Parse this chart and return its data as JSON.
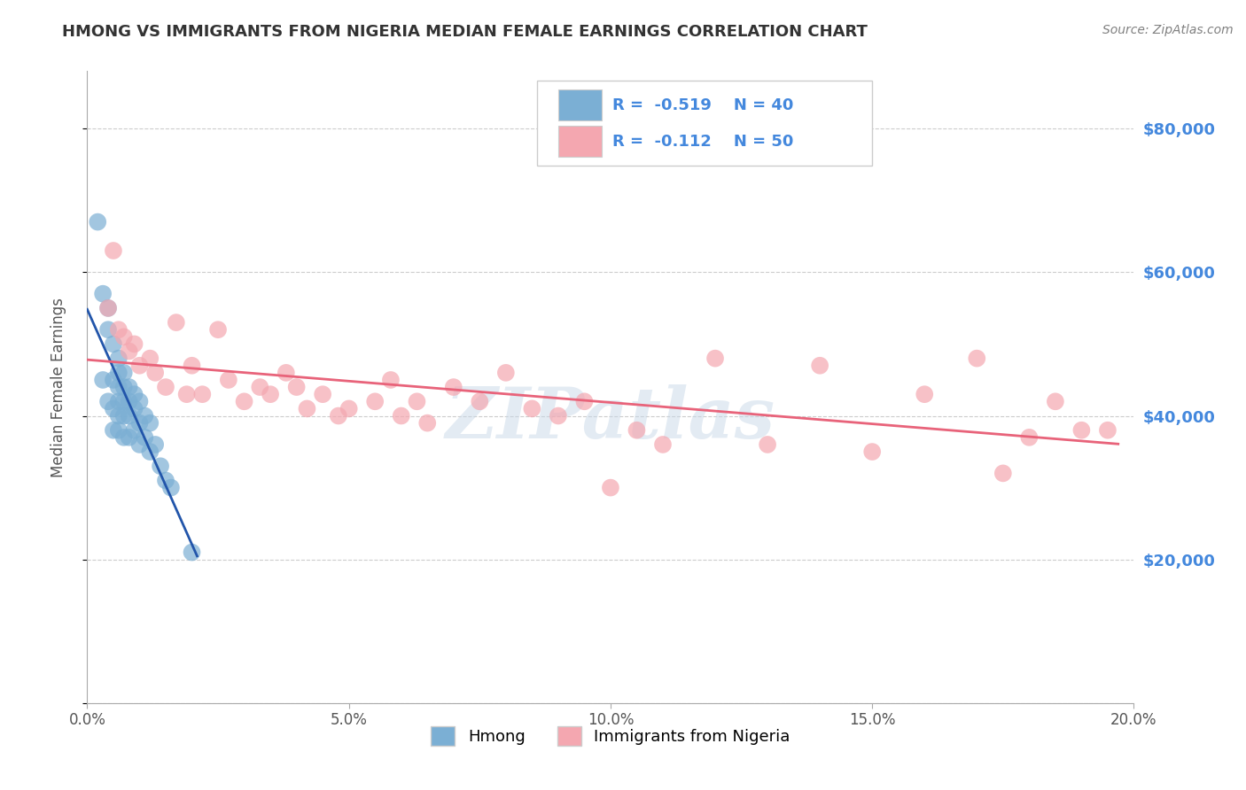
{
  "title": "HMONG VS IMMIGRANTS FROM NIGERIA MEDIAN FEMALE EARNINGS CORRELATION CHART",
  "source": "Source: ZipAtlas.com",
  "ylabel": "Median Female Earnings",
  "watermark": "ZIPatlas",
  "legend_labels": [
    "Hmong",
    "Immigrants from Nigeria"
  ],
  "r_values": [
    -0.519,
    -0.112
  ],
  "n_values": [
    40,
    50
  ],
  "xmin": 0.0,
  "xmax": 0.2,
  "ymin": 0,
  "ymax": 88000,
  "yticks": [
    0,
    20000,
    40000,
    60000,
    80000
  ],
  "ytick_labels": [
    "",
    "$20,000",
    "$40,000",
    "$60,000",
    "$80,000"
  ],
  "xticks": [
    0.0,
    0.05,
    0.1,
    0.15,
    0.2
  ],
  "xtick_labels": [
    "0.0%",
    "5.0%",
    "10.0%",
    "15.0%",
    "20.0%"
  ],
  "blue_color": "#7BAFD4",
  "pink_color": "#F4A7B0",
  "blue_line_color": "#2255AA",
  "pink_line_color": "#E8637A",
  "blue_dots_x": [
    0.002,
    0.003,
    0.003,
    0.004,
    0.004,
    0.004,
    0.005,
    0.005,
    0.005,
    0.005,
    0.006,
    0.006,
    0.006,
    0.006,
    0.006,
    0.006,
    0.007,
    0.007,
    0.007,
    0.007,
    0.007,
    0.008,
    0.008,
    0.008,
    0.008,
    0.009,
    0.009,
    0.009,
    0.01,
    0.01,
    0.01,
    0.011,
    0.011,
    0.012,
    0.012,
    0.013,
    0.014,
    0.015,
    0.016,
    0.02
  ],
  "blue_dots_y": [
    67000,
    57000,
    45000,
    55000,
    52000,
    42000,
    50000,
    45000,
    41000,
    38000,
    48000,
    46000,
    44000,
    42000,
    40000,
    38000,
    46000,
    44000,
    42000,
    40000,
    37000,
    44000,
    42000,
    40000,
    37000,
    43000,
    41000,
    38000,
    42000,
    39000,
    36000,
    40000,
    37000,
    39000,
    35000,
    36000,
    33000,
    31000,
    30000,
    21000
  ],
  "pink_dots_x": [
    0.004,
    0.005,
    0.006,
    0.007,
    0.008,
    0.009,
    0.01,
    0.012,
    0.013,
    0.015,
    0.017,
    0.019,
    0.02,
    0.022,
    0.025,
    0.027,
    0.03,
    0.033,
    0.035,
    0.038,
    0.04,
    0.042,
    0.045,
    0.048,
    0.05,
    0.055,
    0.058,
    0.06,
    0.063,
    0.065,
    0.07,
    0.075,
    0.08,
    0.085,
    0.09,
    0.095,
    0.1,
    0.105,
    0.11,
    0.12,
    0.13,
    0.14,
    0.15,
    0.16,
    0.17,
    0.175,
    0.18,
    0.185,
    0.19,
    0.195
  ],
  "pink_dots_y": [
    55000,
    63000,
    52000,
    51000,
    49000,
    50000,
    47000,
    48000,
    46000,
    44000,
    53000,
    43000,
    47000,
    43000,
    52000,
    45000,
    42000,
    44000,
    43000,
    46000,
    44000,
    41000,
    43000,
    40000,
    41000,
    42000,
    45000,
    40000,
    42000,
    39000,
    44000,
    42000,
    46000,
    41000,
    40000,
    42000,
    30000,
    38000,
    36000,
    48000,
    36000,
    47000,
    35000,
    43000,
    48000,
    32000,
    37000,
    42000,
    38000,
    38000
  ],
  "background_color": "#FFFFFF",
  "grid_color": "#CCCCCC",
  "title_color": "#333333",
  "axis_label_color": "#555555",
  "right_tick_color": "#4488DD",
  "bottom_tick_color": "#555555"
}
